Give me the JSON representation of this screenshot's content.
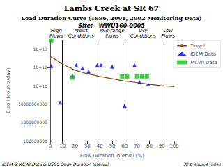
{
  "chart_data": {
    "type": "line",
    "title": "Lambs Creek at SR 67",
    "subtitle": [
      "Load Duration Curve (1996, 2001, 2002 Monitoring Data)",
      "Site:   WWU160-0005"
    ],
    "xlabel": "Flow Duration Interval (%)",
    "ylabel": "E.coli (counts/day)",
    "log": "y",
    "grid": false,
    "legend": "right",
    "xlim": [
      0,
      100
    ],
    "ylim": [
      100000000,
      30000000000000
    ],
    "xticks": [
      0,
      10,
      20,
      30,
      40,
      50,
      60,
      70,
      80,
      90,
      100
    ],
    "yticks": [
      100000000,
      1000000000,
      10000000000,
      {
        "value": 100000000000,
        "label": "1E+11"
      },
      {
        "value": 1000000000000,
        "label": "1E+12"
      },
      {
        "value": 10000000000000,
        "label": "1E+13"
      }
    ],
    "series": [
      {
        "name": "Target",
        "type": "line",
        "line_style": "solid",
        "color": "#8B4513",
        "x": [
          0,
          5,
          10,
          20,
          30,
          40,
          50,
          60,
          70,
          80,
          90,
          100
        ],
        "values": [
          4000000000000.0,
          2500000000000.0,
          1500000000000.0,
          700000000000.0,
          450000000000.0,
          320000000000.0,
          240000000000.0,
          180000000000.0,
          150000000000.0,
          120000000000.0,
          100000000000.0,
          90000000000.0
        ]
      },
      {
        "name": "IDEM Data",
        "type": "scatter",
        "marker": "triangle",
        "color": "#0000FF",
        "x": [
          1,
          8,
          18,
          21,
          26,
          31,
          38,
          41,
          50,
          60,
          68,
          72,
          79
        ],
        "values": [
          1200000000000.0,
          12000000000.0,
          350000000000.0,
          1300000000000.0,
          900000000000.0,
          600000000000.0,
          1300000000000.0,
          1300000000000.0,
          1100000000000.0,
          8000000000.0,
          1300000000000.0,
          160000000000.0,
          120000000000.0
        ]
      },
      {
        "name": "MCWI Data",
        "type": "scatter",
        "marker": "square",
        "color": "#00CC00",
        "x": [
          1,
          18,
          58,
          62,
          70,
          74,
          78
        ],
        "values": [
          28000000000000.0,
          280000000000.0,
          320000000000.0,
          320000000000.0,
          320000000000.0,
          320000000000.0,
          320000000000.0
        ]
      }
    ],
    "vlines": [
      10,
      40,
      60,
      90
    ],
    "annotations": [
      {
        "x": 5,
        "text": "High\nFlows"
      },
      {
        "x": 25,
        "text": "Moist\nConditions"
      },
      {
        "x": 50,
        "text": "Mid-range\nFlows"
      },
      {
        "x": 75,
        "text": "Dry\nConditions"
      },
      {
        "x": 95,
        "text": "Low\nFlows"
      }
    ],
    "footnotes": [
      "IDEM & MCWI Data & USGS Gage Duration Interval",
      "32.6 square miles"
    ]
  }
}
